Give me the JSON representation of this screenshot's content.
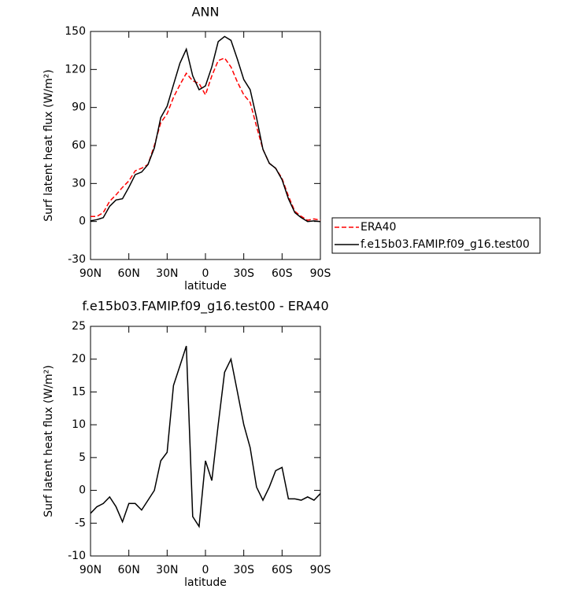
{
  "chart_data": [
    {
      "type": "line",
      "title": "ANN",
      "x_label": "latitude",
      "y_label": "Surf latent heat flux (W/m²)",
      "x": [
        90,
        85,
        80,
        75,
        70,
        65,
        60,
        55,
        50,
        45,
        40,
        35,
        30,
        25,
        20,
        15,
        10,
        5,
        0,
        -5,
        -10,
        -15,
        -20,
        -25,
        -30,
        -35,
        -40,
        -45,
        -50,
        -55,
        -60,
        -65,
        -70,
        -75,
        -80,
        -85,
        -90
      ],
      "series": [
        {
          "name": "ERA40",
          "color": "#ff0000",
          "dashed": true,
          "values": [
            4,
            4,
            7,
            16,
            21,
            27,
            32,
            40,
            42,
            45,
            60,
            78,
            85,
            98,
            108,
            117,
            111,
            109,
            100,
            115,
            127,
            129,
            122,
            110,
            100,
            94,
            75,
            57,
            46,
            42,
            34,
            20,
            8,
            4,
            1,
            2,
            1
          ]
        },
        {
          "name": "f.e15b03.FAMIP.f09_g16.test00",
          "color": "#000000",
          "dashed": false,
          "values": [
            0.5,
            1.5,
            3,
            12,
            17,
            18,
            27,
            37,
            39,
            45,
            58,
            82,
            91,
            108,
            125,
            136,
            115,
            104,
            107,
            122,
            142,
            146,
            143,
            128,
            112,
            104,
            82,
            57,
            46,
            42,
            33,
            18,
            7,
            3,
            0,
            0.5,
            0
          ]
        }
      ],
      "xlim": [
        90,
        -90
      ],
      "xticks": [
        {
          "value": 90,
          "label": "90N"
        },
        {
          "value": 60,
          "label": "60N"
        },
        {
          "value": 30,
          "label": "30N"
        },
        0,
        {
          "value": -30,
          "label": "30S"
        },
        {
          "value": -60,
          "label": "60S"
        },
        {
          "value": -90,
          "label": "90S"
        }
      ],
      "ylim": [
        -30,
        150
      ],
      "yticks": [
        -30,
        0,
        30,
        60,
        90,
        120,
        150
      ],
      "grid": false,
      "legend": "right"
    },
    {
      "type": "line",
      "title": "f.e15b03.FAMIP.f09_g16.test00 - ERA40",
      "x_label": "latitude",
      "y_label": "Surf latent heat flux (W/m²)",
      "x": [
        90,
        85,
        80,
        75,
        70,
        65,
        60,
        55,
        50,
        45,
        40,
        35,
        30,
        25,
        20,
        15,
        10,
        5,
        0,
        -5,
        -10,
        -15,
        -20,
        -25,
        -30,
        -35,
        -40,
        -45,
        -50,
        -55,
        -60,
        -65,
        -70,
        -75,
        -80,
        -85,
        -90
      ],
      "values": [
        -3.5,
        -2.5,
        -2,
        -1,
        -2.5,
        -4.8,
        -2,
        -2,
        -3,
        -1.5,
        0,
        4.5,
        5.8,
        16,
        19,
        22,
        -4,
        -5.5,
        4.5,
        1.5,
        10,
        18,
        20,
        15,
        10,
        6.5,
        0.5,
        -1.5,
        0.5,
        3,
        3.5,
        -1.3,
        -1.3,
        -1.5,
        -1,
        -1.5,
        -0.5
      ],
      "color": "#000000",
      "xlim": [
        90,
        -90
      ],
      "xticks": [
        {
          "value": 90,
          "label": "90N"
        },
        {
          "value": 60,
          "label": "60N"
        },
        {
          "value": 30,
          "label": "30N"
        },
        0,
        {
          "value": -30,
          "label": "30S"
        },
        {
          "value": -60,
          "label": "60S"
        },
        {
          "value": -90,
          "label": "90S"
        }
      ],
      "ylim": [
        -10,
        25
      ],
      "yticks": [
        -10,
        -5,
        0,
        5,
        10,
        15,
        20,
        25
      ],
      "grid": false
    }
  ]
}
